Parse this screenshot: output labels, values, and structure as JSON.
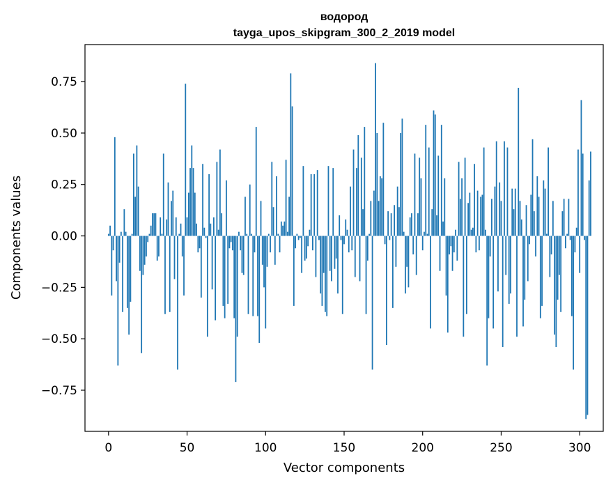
{
  "chart_data": {
    "type": "bar",
    "title": "водород",
    "subtitle": "tayga_upos_skipgram_300_2_2019 model",
    "xlabel": "Vector components",
    "ylabel": "Components values",
    "xlim": [
      -15,
      315
    ],
    "ylim": [
      -0.95,
      0.93
    ],
    "xticks": [
      0,
      50,
      100,
      150,
      200,
      250,
      300
    ],
    "xtick_labels": [
      "0",
      "50",
      "100",
      "150",
      "200",
      "250",
      "300"
    ],
    "yticks": [
      -0.75,
      -0.5,
      -0.25,
      0.0,
      0.25,
      0.5,
      0.75
    ],
    "ytick_labels": [
      "−0.75",
      "−0.50",
      "−0.25",
      "0.00",
      "0.25",
      "0.50",
      "0.75"
    ],
    "bar_color": "#1f77b4",
    "grid": false,
    "series": [
      {
        "values": [
          0.01,
          0.05,
          -0.29,
          -0.07,
          0.48,
          -0.22,
          -0.63,
          -0.13,
          0.02,
          -0.37,
          0.13,
          0.02,
          -0.35,
          -0.48,
          -0.32,
          0.01,
          0.4,
          0.19,
          0.44,
          0.24,
          -0.17,
          -0.57,
          -0.19,
          -0.14,
          -0.1,
          -0.03,
          0.01,
          0.05,
          0.11,
          0.11,
          0.11,
          -0.12,
          -0.1,
          0.09,
          0.01,
          0.4,
          -0.38,
          0.08,
          0.26,
          -0.37,
          0.17,
          0.22,
          -0.21,
          0.09,
          -0.65,
          0.01,
          0.06,
          -0.1,
          -0.29,
          0.74,
          0.09,
          0.21,
          0.33,
          0.44,
          0.33,
          0.21,
          0.06,
          -0.08,
          -0.06,
          -0.3,
          0.35,
          0.04,
          -0.01,
          -0.49,
          0.3,
          0.06,
          -0.26,
          0.09,
          -0.41,
          0.36,
          0.03,
          0.42,
          0.11,
          -0.34,
          -0.4,
          0.27,
          -0.33,
          -0.06,
          -0.03,
          -0.07,
          -0.4,
          -0.71,
          -0.49,
          0.02,
          -0.07,
          -0.18,
          -0.19,
          0.19,
          0.01,
          -0.38,
          0.25,
          0.01,
          -0.39,
          -0.08,
          0.53,
          -0.39,
          -0.52,
          0.17,
          -0.14,
          -0.25,
          -0.45,
          -0.15,
          0.01,
          -0.08,
          0.36,
          0.14,
          -0.14,
          0.29,
          0.01,
          -0.08,
          0.07,
          0.05,
          0.07,
          0.37,
          0.02,
          0.19,
          0.79,
          0.63,
          -0.34,
          -0.06,
          0.01,
          -0.02,
          -0.01,
          -0.18,
          0.34,
          -0.12,
          -0.11,
          -0.05,
          0.03,
          0.3,
          -0.07,
          0.3,
          -0.2,
          0.32,
          -0.02,
          -0.28,
          -0.34,
          -0.18,
          -0.37,
          -0.39,
          0.34,
          -0.17,
          -0.22,
          0.33,
          -0.16,
          -0.11,
          -0.28,
          0.1,
          -0.02,
          -0.38,
          -0.04,
          0.08,
          0.03,
          -0.08,
          0.24,
          -0.07,
          0.42,
          -0.2,
          0.33,
          0.49,
          -0.22,
          0.38,
          0.13,
          0.53,
          -0.38,
          -0.12,
          0.01,
          0.17,
          -0.65,
          0.22,
          0.84,
          0.5,
          0.17,
          0.29,
          0.28,
          0.55,
          -0.04,
          -0.53,
          0.12,
          -0.02,
          0.11,
          -0.35,
          0.15,
          -0.15,
          0.24,
          0.14,
          0.5,
          0.57,
          0.02,
          -0.28,
          -0.15,
          -0.25,
          0.09,
          0.11,
          -0.09,
          0.4,
          -0.19,
          0.11,
          0.38,
          0.28,
          -0.07,
          0.02,
          0.54,
          0.01,
          0.43,
          -0.45,
          0.13,
          0.61,
          0.59,
          0.1,
          0.39,
          -0.17,
          0.54,
          0.07,
          0.28,
          -0.29,
          -0.47,
          -0.09,
          -0.05,
          -0.17,
          -0.08,
          0.03,
          -0.12,
          0.36,
          0.18,
          0.28,
          -0.49,
          0.38,
          -0.38,
          0.16,
          0.21,
          0.03,
          0.04,
          0.35,
          -0.08,
          0.22,
          -0.07,
          0.19,
          0.2,
          0.43,
          0.03,
          -0.63,
          -0.4,
          -0.1,
          0.18,
          -0.45,
          0.24,
          0.46,
          -0.27,
          0.26,
          0.17,
          -0.54,
          0.46,
          -0.19,
          0.43,
          -0.33,
          -0.28,
          0.23,
          0.13,
          0.23,
          -0.49,
          0.72,
          0.17,
          0.08,
          -0.44,
          -0.31,
          0.15,
          -0.22,
          -0.04,
          0.2,
          0.47,
          0.12,
          -0.1,
          0.29,
          0.19,
          -0.4,
          -0.34,
          0.27,
          0.23,
          0.01,
          0.43,
          -0.2,
          -0.09,
          0.17,
          -0.48,
          -0.54,
          -0.31,
          -0.19,
          -0.37,
          0.12,
          0.18,
          -0.06,
          0.01,
          0.18,
          -0.02,
          -0.39,
          -0.65,
          -0.08,
          0.04,
          0.42,
          -0.18,
          0.66,
          0.4,
          -0.02,
          -0.89,
          -0.87,
          0.27,
          0.41
        ]
      }
    ]
  }
}
